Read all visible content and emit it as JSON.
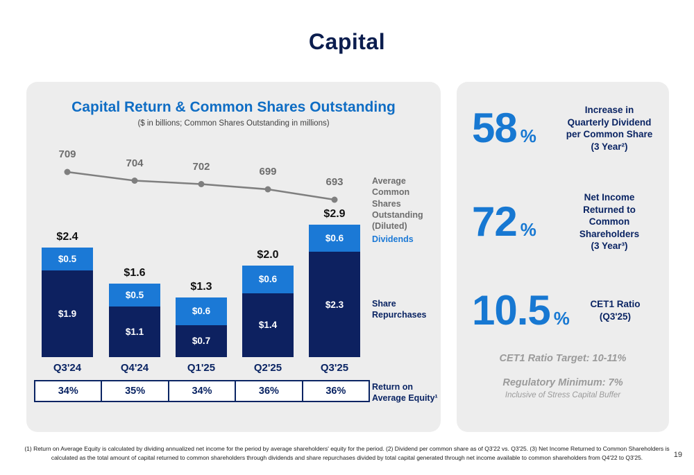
{
  "page": {
    "title": "Capital",
    "page_number": "19",
    "footnote": "(1) Return on Average Equity is calculated by dividing annualized net income for the period by average shareholders' equity for the period. (2) Dividend per common share as of Q3'22 vs. Q3'25. (3) Net Income Returned to Common Shareholders is calculated as the total amount of capital returned to common shareholders through dividends and share repurchases divided by total capital generated through net income available to common shareholders from Q4'22 to Q3'25."
  },
  "left_panel": {
    "title": "Capital Return & Common Shares Outstanding",
    "subtitle": "($ in billions; Common Shares Outstanding in millions)",
    "line_label": "Average Common\nShares\nOutstanding\n(Diluted)",
    "dividends_label": "Dividends",
    "repurchases_label": "Share\nRepurchases",
    "roe_label": "Return on\nAverage Equity¹"
  },
  "chart_data": {
    "type": "bar",
    "stacked": true,
    "title": "Capital Return & Common Shares Outstanding",
    "subtitle": "($ in billions; Common Shares Outstanding in millions)",
    "categories": [
      "Q3'24",
      "Q4'24",
      "Q1'25",
      "Q2'25",
      "Q3'25"
    ],
    "series": [
      {
        "name": "Share Repurchases",
        "values": [
          1.9,
          1.1,
          0.7,
          1.4,
          2.3
        ],
        "labels": [
          "$1.9",
          "$1.1",
          "$0.7",
          "$1.4",
          "$2.3"
        ],
        "color": "#0d2160"
      },
      {
        "name": "Dividends",
        "values": [
          0.5,
          0.5,
          0.6,
          0.6,
          0.6
        ],
        "labels": [
          "$0.5",
          "$0.5",
          "$0.6",
          "$0.6",
          "$0.6"
        ],
        "color": "#1b79d6"
      }
    ],
    "totals": [
      "$2.4",
      "$1.6",
      "$1.3",
      "$2.0",
      "$2.9"
    ],
    "total_values": [
      2.4,
      1.6,
      1.3,
      2.0,
      2.9
    ],
    "line_series": {
      "name": "Average Common Shares Outstanding (Diluted)",
      "values": [
        709,
        704,
        702,
        699,
        693
      ],
      "color": "#7f7f7f"
    },
    "roe_values": [
      "34%",
      "35%",
      "34%",
      "36%",
      "36%"
    ],
    "roe_name": "Return on Average Equity",
    "ylim": [
      0,
      3.2
    ],
    "grid": false,
    "legend_position": "right"
  },
  "right_panel": {
    "stats": [
      {
        "value": "58",
        "unit": "%",
        "desc": "Increase in\nQuarterly Dividend\nper Common Share\n(3 Year²)"
      },
      {
        "value": "72",
        "unit": "%",
        "desc": "Net Income\nReturned to\nCommon\nShareholders\n(3 Year³)"
      },
      {
        "value": "10.5",
        "unit": "%",
        "desc": "CET1 Ratio\n(Q3'25)"
      }
    ],
    "target": "CET1 Ratio Target: 10-11%",
    "minimum": "Regulatory Minimum: 7%",
    "buffer_note": "Inclusive of Stress Capital Buffer"
  }
}
